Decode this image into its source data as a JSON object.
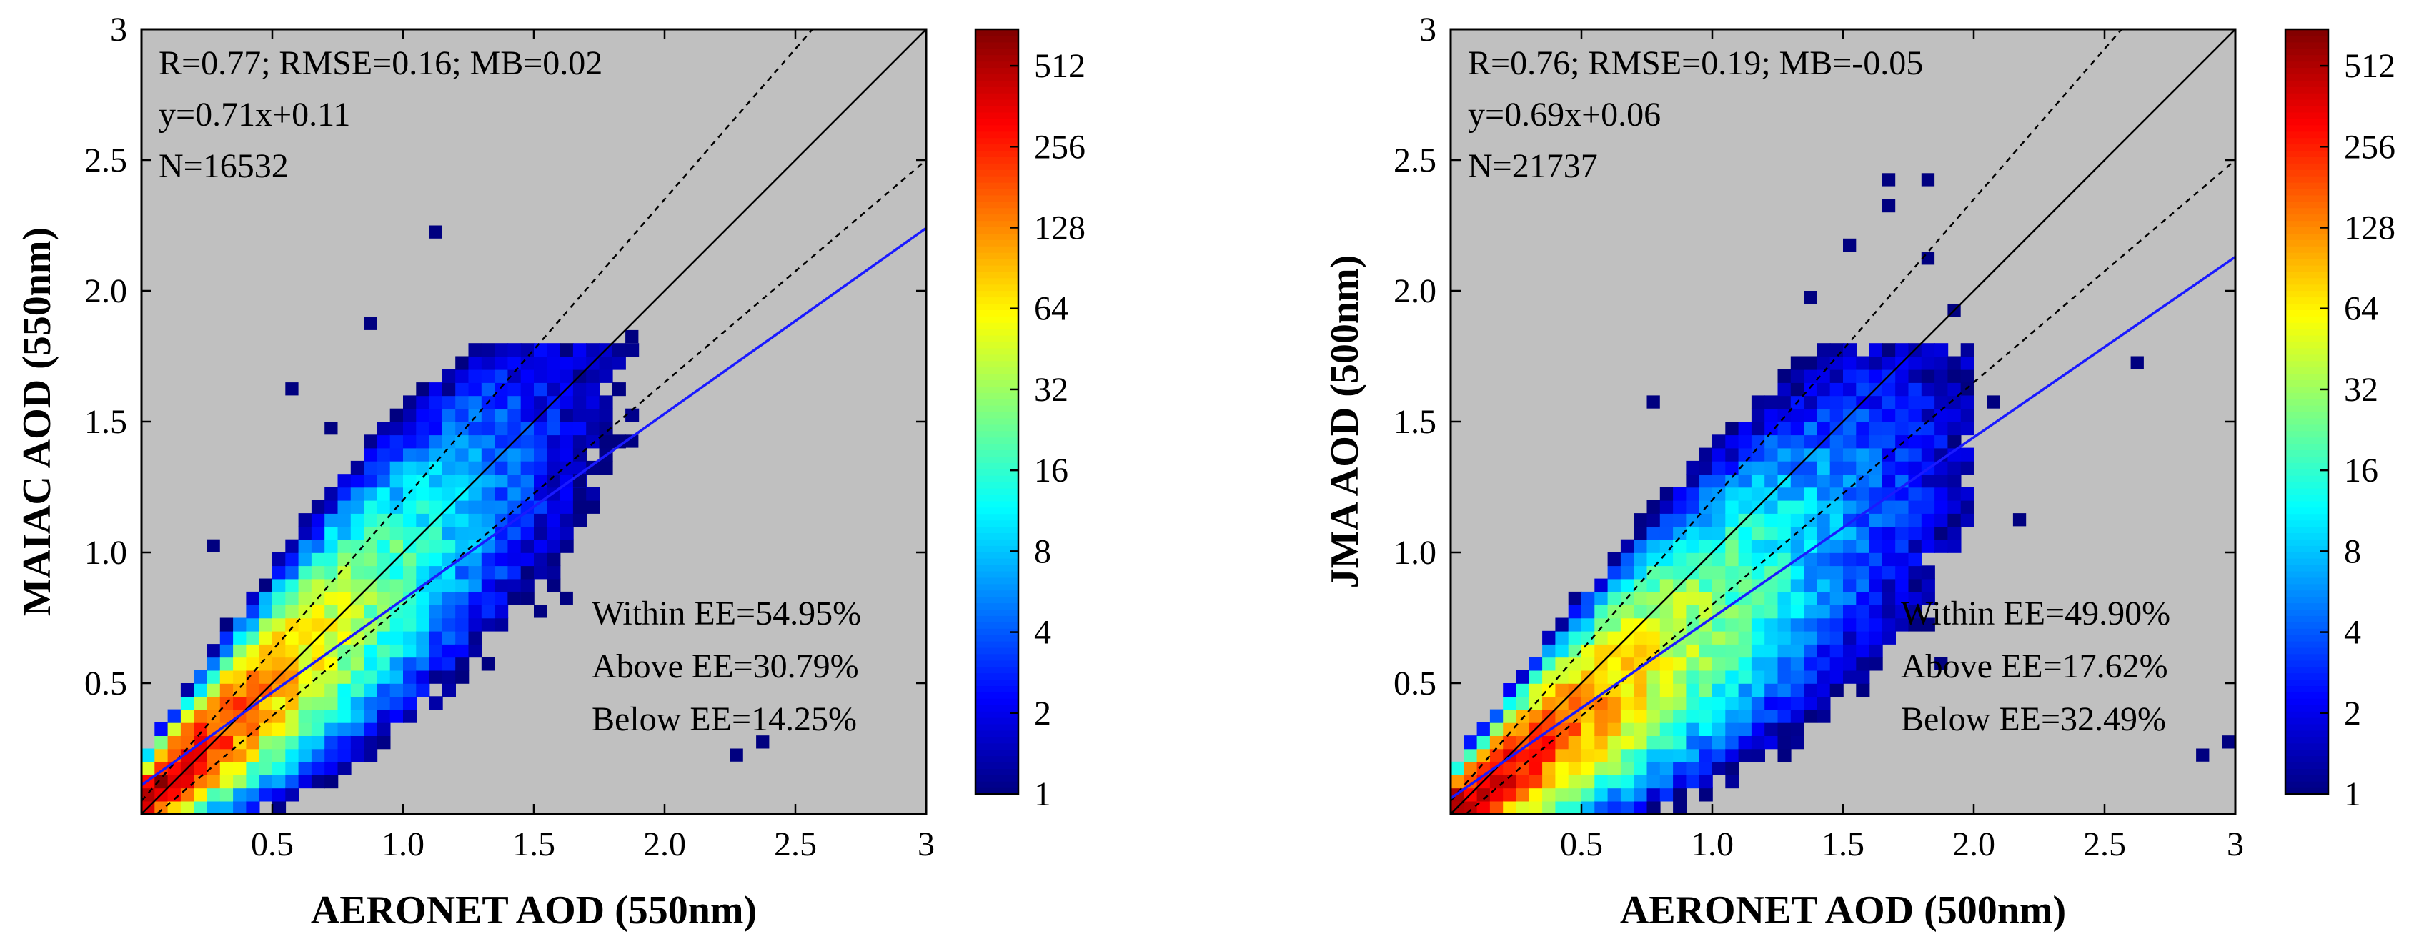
{
  "chart_data": [
    {
      "type": "heatmap",
      "xlabel": "AERONET AOD (550nm)",
      "ylabel": "MAIAC AOD (550nm)",
      "xlim": [
        0,
        3
      ],
      "ylim": [
        0,
        3
      ],
      "xticks": [
        "0.5",
        "1.0",
        "1.5",
        "2.0",
        "2.5",
        "3"
      ],
      "yticks": [
        "0.5",
        "1.0",
        "1.5",
        "2.0",
        "2.5",
        "3"
      ],
      "stats": [
        "R=0.77; RMSE=0.16; MB=0.02",
        "y=0.71x+0.11",
        "N=16532"
      ],
      "ee": [
        "Within EE=54.95%",
        "Above EE=30.79%",
        "Below EE=14.25%"
      ],
      "fit": {
        "slope": 0.71,
        "intercept": 0.11
      },
      "ee_envelope": {
        "abs": 0.05,
        "rel": 0.15
      },
      "colorbar": {
        "label_values": [
          1,
          2,
          4,
          8,
          16,
          32,
          64,
          128,
          256,
          512
        ],
        "max": 700,
        "labels": [
          "1",
          "2",
          "4",
          "8",
          "16",
          "32",
          "64",
          "128",
          "256",
          "512"
        ]
      },
      "outliers": [
        [
          1.1,
          2.2
        ],
        [
          0.85,
          1.85
        ],
        [
          0.55,
          1.6
        ],
        [
          0.7,
          1.45
        ],
        [
          1.85,
          1.8
        ],
        [
          1.85,
          1.4
        ],
        [
          2.25,
          0.2
        ],
        [
          2.35,
          0.25
        ],
        [
          1.6,
          0.8
        ],
        [
          1.65,
          1.25
        ],
        [
          0.25,
          1.0
        ],
        [
          0.45,
          0.85
        ],
        [
          1.4,
          0.8
        ],
        [
          1.5,
          0.75
        ]
      ]
    },
    {
      "type": "heatmap",
      "xlabel": "AERONET AOD (500nm)",
      "ylabel": "JMA AOD (500nm)",
      "xlim": [
        0,
        3
      ],
      "ylim": [
        0,
        3
      ],
      "xticks": [
        "0.5",
        "1.0",
        "1.5",
        "2.0",
        "2.5",
        "3"
      ],
      "yticks": [
        "0.5",
        "1.0",
        "1.5",
        "2.0",
        "2.5",
        "3"
      ],
      "stats": [
        "R=0.76; RMSE=0.19; MB=-0.05",
        "y=0.69x+0.06",
        "N=21737"
      ],
      "ee": [
        "Within EE=49.90%",
        "Above EE=17.62%",
        "Below EE=32.49%"
      ],
      "fit": {
        "slope": 0.69,
        "intercept": 0.06
      },
      "ee_envelope": {
        "abs": 0.05,
        "rel": 0.15
      },
      "colorbar": {
        "label_values": [
          1,
          2,
          4,
          8,
          16,
          32,
          64,
          128,
          256,
          512
        ],
        "max": 700,
        "labels": [
          "1",
          "2",
          "4",
          "8",
          "16",
          "32",
          "64",
          "128",
          "256",
          "512"
        ]
      },
      "outliers": [
        [
          1.65,
          2.4
        ],
        [
          1.8,
          2.4
        ],
        [
          1.65,
          2.3
        ],
        [
          1.5,
          2.15
        ],
        [
          1.8,
          2.1
        ],
        [
          1.35,
          1.95
        ],
        [
          1.9,
          1.9
        ],
        [
          2.6,
          1.7
        ],
        [
          2.15,
          1.1
        ],
        [
          2.05,
          1.55
        ],
        [
          1.95,
          1.6
        ],
        [
          2.85,
          0.2
        ],
        [
          2.95,
          0.25
        ],
        [
          1.85,
          0.55
        ],
        [
          0.75,
          1.55
        ]
      ]
    }
  ]
}
